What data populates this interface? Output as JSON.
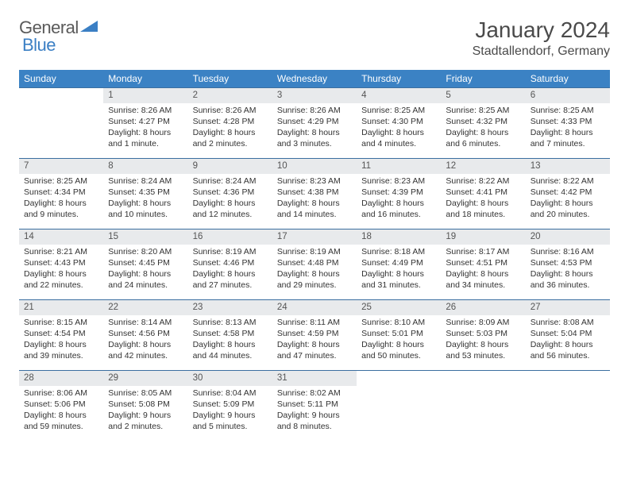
{
  "brand": {
    "part1": "General",
    "part2": "Blue"
  },
  "title": "January 2024",
  "location": "Stadtallendorf, Germany",
  "colors": {
    "header_bg": "#3b82c4",
    "header_text": "#ffffff",
    "daynum_bg": "#e8eaec",
    "rule": "#3b6fa0",
    "text": "#333333",
    "title_text": "#4a4a4a",
    "logo_gray": "#5a5a5a",
    "logo_blue": "#3b7fc4"
  },
  "weekdays": [
    "Sunday",
    "Monday",
    "Tuesday",
    "Wednesday",
    "Thursday",
    "Friday",
    "Saturday"
  ],
  "weeks": [
    [
      null,
      {
        "n": "1",
        "sr": "8:26 AM",
        "ss": "4:27 PM",
        "dl": "8 hours and 1 minute."
      },
      {
        "n": "2",
        "sr": "8:26 AM",
        "ss": "4:28 PM",
        "dl": "8 hours and 2 minutes."
      },
      {
        "n": "3",
        "sr": "8:26 AM",
        "ss": "4:29 PM",
        "dl": "8 hours and 3 minutes."
      },
      {
        "n": "4",
        "sr": "8:25 AM",
        "ss": "4:30 PM",
        "dl": "8 hours and 4 minutes."
      },
      {
        "n": "5",
        "sr": "8:25 AM",
        "ss": "4:32 PM",
        "dl": "8 hours and 6 minutes."
      },
      {
        "n": "6",
        "sr": "8:25 AM",
        "ss": "4:33 PM",
        "dl": "8 hours and 7 minutes."
      }
    ],
    [
      {
        "n": "7",
        "sr": "8:25 AM",
        "ss": "4:34 PM",
        "dl": "8 hours and 9 minutes."
      },
      {
        "n": "8",
        "sr": "8:24 AM",
        "ss": "4:35 PM",
        "dl": "8 hours and 10 minutes."
      },
      {
        "n": "9",
        "sr": "8:24 AM",
        "ss": "4:36 PM",
        "dl": "8 hours and 12 minutes."
      },
      {
        "n": "10",
        "sr": "8:23 AM",
        "ss": "4:38 PM",
        "dl": "8 hours and 14 minutes."
      },
      {
        "n": "11",
        "sr": "8:23 AM",
        "ss": "4:39 PM",
        "dl": "8 hours and 16 minutes."
      },
      {
        "n": "12",
        "sr": "8:22 AM",
        "ss": "4:41 PM",
        "dl": "8 hours and 18 minutes."
      },
      {
        "n": "13",
        "sr": "8:22 AM",
        "ss": "4:42 PM",
        "dl": "8 hours and 20 minutes."
      }
    ],
    [
      {
        "n": "14",
        "sr": "8:21 AM",
        "ss": "4:43 PM",
        "dl": "8 hours and 22 minutes."
      },
      {
        "n": "15",
        "sr": "8:20 AM",
        "ss": "4:45 PM",
        "dl": "8 hours and 24 minutes."
      },
      {
        "n": "16",
        "sr": "8:19 AM",
        "ss": "4:46 PM",
        "dl": "8 hours and 27 minutes."
      },
      {
        "n": "17",
        "sr": "8:19 AM",
        "ss": "4:48 PM",
        "dl": "8 hours and 29 minutes."
      },
      {
        "n": "18",
        "sr": "8:18 AM",
        "ss": "4:49 PM",
        "dl": "8 hours and 31 minutes."
      },
      {
        "n": "19",
        "sr": "8:17 AM",
        "ss": "4:51 PM",
        "dl": "8 hours and 34 minutes."
      },
      {
        "n": "20",
        "sr": "8:16 AM",
        "ss": "4:53 PM",
        "dl": "8 hours and 36 minutes."
      }
    ],
    [
      {
        "n": "21",
        "sr": "8:15 AM",
        "ss": "4:54 PM",
        "dl": "8 hours and 39 minutes."
      },
      {
        "n": "22",
        "sr": "8:14 AM",
        "ss": "4:56 PM",
        "dl": "8 hours and 42 minutes."
      },
      {
        "n": "23",
        "sr": "8:13 AM",
        "ss": "4:58 PM",
        "dl": "8 hours and 44 minutes."
      },
      {
        "n": "24",
        "sr": "8:11 AM",
        "ss": "4:59 PM",
        "dl": "8 hours and 47 minutes."
      },
      {
        "n": "25",
        "sr": "8:10 AM",
        "ss": "5:01 PM",
        "dl": "8 hours and 50 minutes."
      },
      {
        "n": "26",
        "sr": "8:09 AM",
        "ss": "5:03 PM",
        "dl": "8 hours and 53 minutes."
      },
      {
        "n": "27",
        "sr": "8:08 AM",
        "ss": "5:04 PM",
        "dl": "8 hours and 56 minutes."
      }
    ],
    [
      {
        "n": "28",
        "sr": "8:06 AM",
        "ss": "5:06 PM",
        "dl": "8 hours and 59 minutes."
      },
      {
        "n": "29",
        "sr": "8:05 AM",
        "ss": "5:08 PM",
        "dl": "9 hours and 2 minutes."
      },
      {
        "n": "30",
        "sr": "8:04 AM",
        "ss": "5:09 PM",
        "dl": "9 hours and 5 minutes."
      },
      {
        "n": "31",
        "sr": "8:02 AM",
        "ss": "5:11 PM",
        "dl": "9 hours and 8 minutes."
      },
      null,
      null,
      null
    ]
  ],
  "labels": {
    "sunrise": "Sunrise:",
    "sunset": "Sunset:",
    "daylight": "Daylight:"
  }
}
